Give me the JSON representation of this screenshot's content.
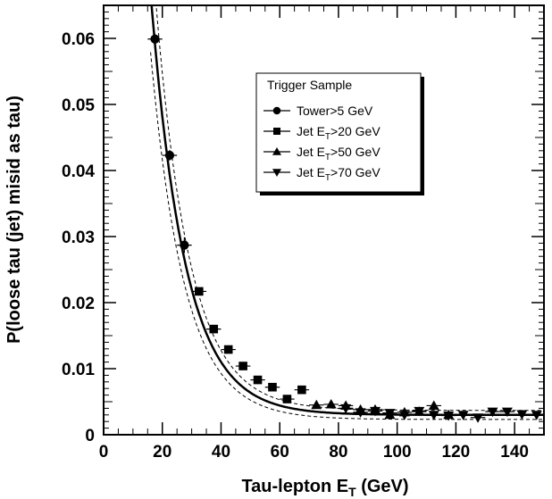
{
  "chart_data": {
    "type": "scatter",
    "xlabel": "Tau-lepton E",
    "xlabel_sub": "T",
    "xlabel_unit": " (GeV)",
    "ylabel": "P(loose tau (jet) misid as tau)",
    "xlim": [
      0,
      150
    ],
    "ylim": [
      0,
      0.065
    ],
    "x_ticks": [
      0,
      20,
      40,
      60,
      80,
      100,
      120,
      140
    ],
    "y_ticks": [
      0,
      0.01,
      0.02,
      0.03,
      0.04,
      0.05,
      0.06
    ],
    "x_tick_labels": [
      "0",
      "20",
      "40",
      "60",
      "80",
      "100",
      "120",
      "140"
    ],
    "y_tick_labels": [
      "0",
      "0.01",
      "0.02",
      "0.03",
      "0.04",
      "0.05",
      "0.06"
    ],
    "grid": false,
    "legend": {
      "title": "Trigger Sample",
      "placement": "top-right",
      "entries": [
        {
          "prefix": "Tower>5 GeV",
          "sub": "",
          "suffix": "",
          "marker": "circle"
        },
        {
          "prefix": "Jet E",
          "sub": "T",
          "suffix": ">20 GeV",
          "marker": "square"
        },
        {
          "prefix": "Jet E",
          "sub": "T",
          "suffix": ">50 GeV",
          "marker": "triangle-up"
        },
        {
          "prefix": "Jet E",
          "sub": "T",
          "suffix": ">70 GeV",
          "marker": "triangle-down"
        }
      ]
    },
    "series": [
      {
        "marker": "circle",
        "x": [
          17.5,
          22.5,
          27.5
        ],
        "y": [
          0.0599,
          0.0423,
          0.0287
        ],
        "yerr": [
          0.0008,
          0.0008,
          0.0012
        ]
      },
      {
        "marker": "square",
        "x": [
          32.5,
          37.5,
          42.5,
          47.5,
          52.5,
          57.5,
          62.5,
          67.5
        ],
        "y": [
          0.0217,
          0.016,
          0.0129,
          0.0104,
          0.0083,
          0.0072,
          0.0054,
          0.0068
        ],
        "yerr": [
          0.0006,
          0.0005,
          0.0004,
          0.0004,
          0.0004,
          0.0004,
          0.0004,
          0.0006
        ]
      },
      {
        "marker": "triangle-up",
        "x": [
          72.5,
          77.5,
          82.5,
          87.5,
          92.5,
          97.5,
          102.5,
          107.5,
          112.5,
          117.5
        ],
        "y": [
          0.0045,
          0.0046,
          0.0044,
          0.0038,
          0.0038,
          0.003,
          0.0034,
          0.0035,
          0.0044,
          0.003
        ],
        "yerr": [
          0.0003,
          0.0003,
          0.0003,
          0.0003,
          0.0003,
          0.0003,
          0.0004,
          0.0004,
          0.0006,
          0.0004
        ]
      },
      {
        "marker": "triangle-down",
        "x": [
          82.5,
          87.5,
          92.5,
          97.5,
          102.5,
          107.5,
          112.5,
          117.5,
          122.5,
          127.5,
          132.5,
          137.5,
          142.5,
          147.5
        ],
        "y": [
          0.004,
          0.0034,
          0.0036,
          0.0033,
          0.003,
          0.0036,
          0.003,
          0.0029,
          0.003,
          0.0026,
          0.0035,
          0.0035,
          0.0031,
          0.003
        ],
        "yerr": [
          0.0003,
          0.0003,
          0.0003,
          0.0003,
          0.0003,
          0.0003,
          0.0003,
          0.0003,
          0.0003,
          0.0003,
          0.0003,
          0.0003,
          0.0003,
          0.0003
        ]
      }
    ],
    "fit": {
      "amplitude": 0.255,
      "decay": 0.0865,
      "constant": 0.003,
      "band_relative": 0.13,
      "band_absolute": 0.0003,
      "x_start": 16
    }
  }
}
